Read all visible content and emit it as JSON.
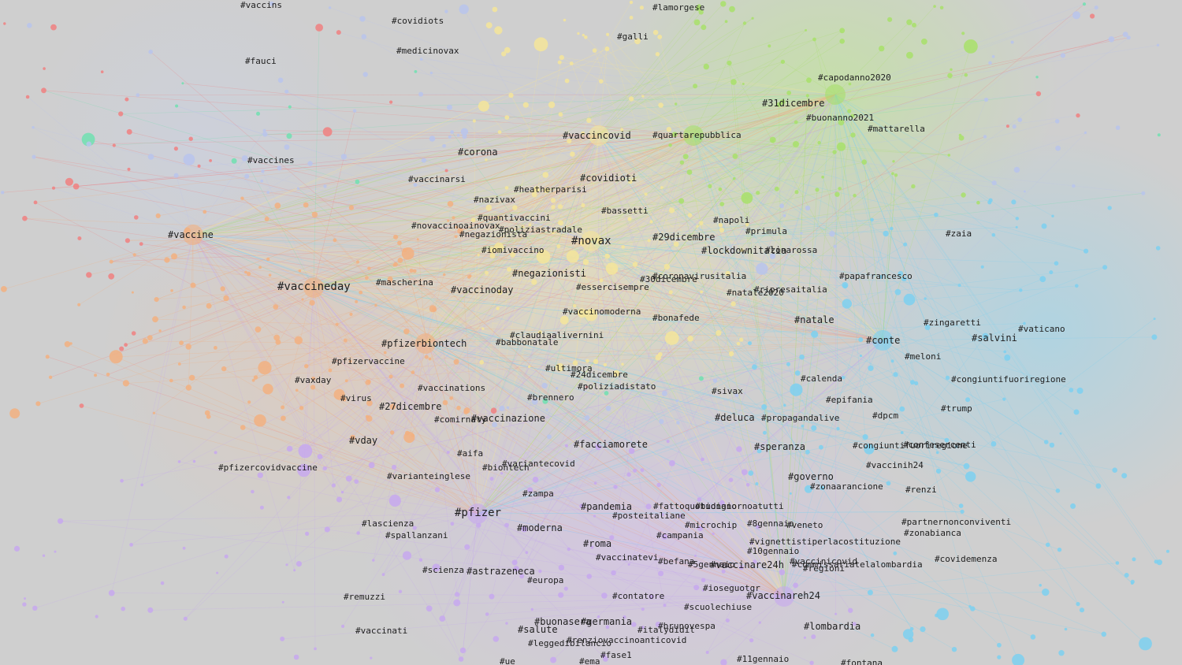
{
  "colors": {
    "background": "#cfcfcf",
    "label": "#1e1e1e",
    "cluster_green": "#a8e06a",
    "cluster_blue": "#7cd0f0",
    "cluster_yellow": "#f5e59a",
    "cluster_orange": "#f2b080",
    "cluster_purple": "#c7a8ee",
    "cluster_red": "#f08080",
    "cluster_teal": "#70e0b0"
  },
  "labels": [
    "#vaccins",
    "#covidiots",
    "#lamorgese",
    "#medicinovax",
    "#galli",
    "#fauci",
    "#capodanno2020",
    "#31dicembre",
    "#buonanno2021",
    "#mattarella",
    "#vaccincovid",
    "#quartarepubblica",
    "#corona",
    "#vaccines",
    "#vaccinarsi",
    "#covidioti",
    "#heatherparisi",
    "#nazivax",
    "#bassetti",
    "#quantivaccini",
    "#napoli",
    "#novaccinoainovax",
    "#poliziastradale",
    "#primula",
    "#negazionista",
    "#zaia",
    "#vaccine",
    "#novax",
    "#29dicembre",
    "#iomivaccino",
    "#lockdownitalia",
    "#zonarossa",
    "#negazionisti",
    "#coronavirusitalia",
    "#papafrancesco",
    "#30dicembre",
    "#vaccineday",
    "#mascherina",
    "#essercisempre",
    "#natale2020",
    "#ripresaitalia",
    "#vaccinoday",
    "#vaccinomoderna",
    "#bonafede",
    "#natale",
    "#zingaretti",
    "#vaticano",
    "#claudiaalivernini",
    "#pfizerbiontech",
    "#babbonatale",
    "#conte",
    "#salvini",
    "#meloni",
    "#pfizervaccine",
    "#ultimora",
    "#24dicembre",
    "#vaxday",
    "#calenda",
    "#congiuntifuoriregione",
    "#poliziadistato",
    "#vaccinations",
    "#sivax",
    "#virus",
    "#brennero",
    "#epifania",
    "#27dicembre",
    "#deluca",
    "#propagandalive",
    "#dpcm",
    "#trump",
    "#comirnaty",
    "#vaccinazione",
    "#vday",
    "#facciamorete",
    "#speranza",
    "#congiuntifuoriregione",
    "#confesercenti",
    "#aifa",
    "#variantecovid",
    "#vaccinih24",
    "#pfizercovidvaccine",
    "#biontech",
    "#varianteinglese",
    "#governo",
    "#zonaarancione",
    "#renzi",
    "#zampa",
    "#pandemia",
    "#fattoquotidiano",
    "#buongiornoatutti",
    "#posteitaliane",
    "#pfizer",
    "#lascienza",
    "#moderna",
    "#microchip",
    "#8gennaio",
    "#veneto",
    "#partnernonconviventi",
    "#spallanzani",
    "#campania",
    "#zonabianca",
    "#roma",
    "#vignettistiperlacostituzione",
    "#10gennaio",
    "#vaccinatevi",
    "#vaccinicovid",
    "#covidemenza",
    "#befana",
    "#5gennaio",
    "#vaccinare24h",
    "#commissariatelalombardia",
    "#regioni",
    "#scienza",
    "#astrazeneca",
    "#europa",
    "#ioseguotgr",
    "#contatore",
    "#vaccinareh24",
    "#remuzzi",
    "#scuolechiuse",
    "#buonasera",
    "#germania",
    "#brunovespa",
    "#salute",
    "#italydidit",
    "#vaccinati",
    "#lombardia",
    "#renziovaccinoanticovid",
    "#leggedibilancio",
    "#fase1",
    "#11gennaio",
    "#ue",
    "#ema",
    "#fontana"
  ]
}
